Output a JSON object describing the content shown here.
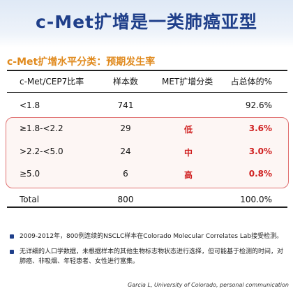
{
  "title": "c-Met扩增是一类肺癌亚型",
  "subtitle": "c-Met扩增水平分类：预期发生率",
  "table": {
    "headers": [
      "c-Met/CEP7比率",
      "样本数",
      "MET扩增分类",
      "占总体的%"
    ],
    "rows": [
      {
        "ratio": "<1.8",
        "n": "741",
        "class": "",
        "pct": "92.6%"
      },
      {
        "ratio": "≥1.8-<2.2",
        "n": "29",
        "class": "低",
        "pct": "3.6%"
      },
      {
        "ratio": ">2.2-<5.0",
        "n": "24",
        "class": "中",
        "pct": "3.0%"
      },
      {
        "ratio": "≥5.0",
        "n": "6",
        "class": "高",
        "pct": "0.8%"
      },
      {
        "ratio": "Total",
        "n": "800",
        "class": "",
        "pct": "100.0%"
      }
    ]
  },
  "notes": [
    "2009-2012年，800例连续的NSCLC样本在Colorado Molecular Correlates Lab接受检测。",
    "无详细的人口学数据，未根据样本的其他生物标志物状态进行选择，但可能基于检测的时间，对肺癌、非吸烟、年轻患者、女性进行富集。"
  ],
  "footer": "Garcia L, University of Colorado, personal communication",
  "colors": {
    "title": "#1f3f8a",
    "subtitle": "#e08a1e",
    "highlight": "#d02020"
  }
}
